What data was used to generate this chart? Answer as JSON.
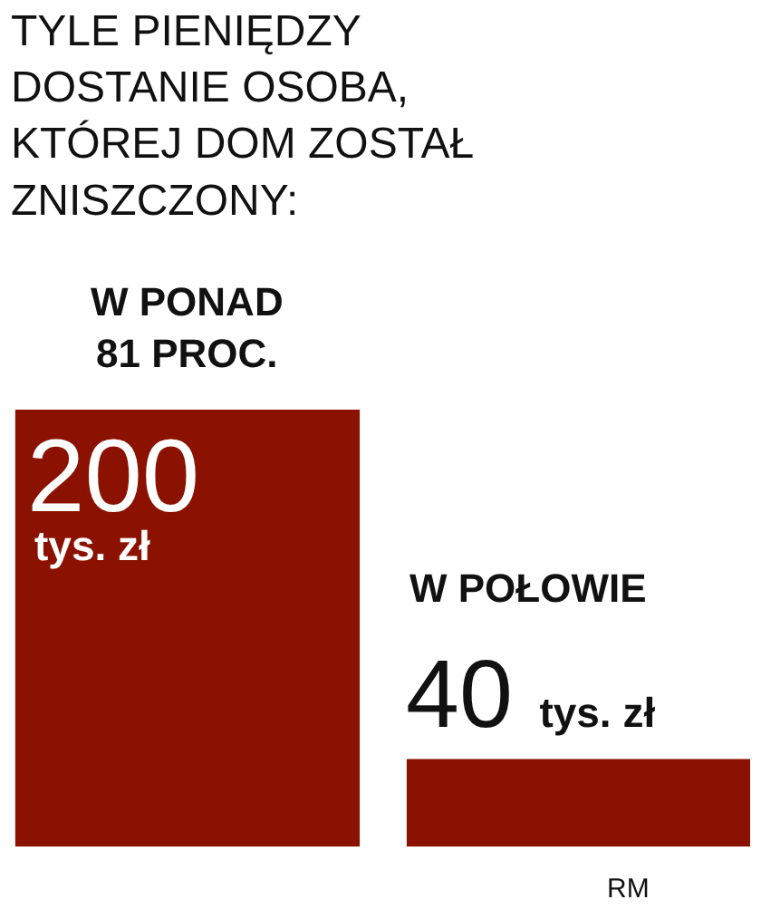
{
  "chart_data": {
    "type": "bar",
    "title": "TYLE PIENIĘDZY DOSTANIE OSOBA, KTÓREJ DOM ZOSTAŁ ZNISZCZONY:",
    "categories": [
      "W PONAD 81 PROC.",
      "W POŁOWIE"
    ],
    "values": [
      200,
      40
    ],
    "color": "#8b1200",
    "value_labels": [
      "200 tys. zł",
      "40 tys. zł"
    ],
    "annotations": [
      "RM"
    ]
  }
}
